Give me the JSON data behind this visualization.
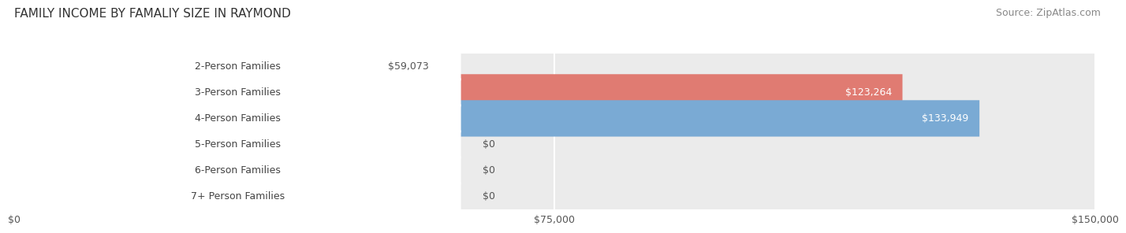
{
  "title": "FAMILY INCOME BY FAMALIY SIZE IN RAYMOND",
  "source": "Source: ZipAtlas.com",
  "categories": [
    "2-Person Families",
    "3-Person Families",
    "4-Person Families",
    "5-Person Families",
    "6-Person Families",
    "7+ Person Families"
  ],
  "values": [
    59073,
    123264,
    133949,
    0,
    0,
    0
  ],
  "bar_colors": [
    "#f8c98a",
    "#e07b72",
    "#7aaad4",
    "#c9aedd",
    "#7ecfc4",
    "#b0b8d8"
  ],
  "label_colors": [
    "#555555",
    "#ffffff",
    "#ffffff",
    "#555555",
    "#555555",
    "#555555"
  ],
  "x_ticks": [
    0,
    75000,
    150000
  ],
  "x_tick_labels": [
    "$0",
    "$75,000",
    "$150,000"
  ],
  "xlim": [
    0,
    150000
  ],
  "background_color": "#ffffff",
  "bar_background_color": "#ebebeb",
  "value_labels": [
    "$59,073",
    "$123,264",
    "$133,949",
    "$0",
    "$0",
    "$0"
  ],
  "title_fontsize": 11,
  "source_fontsize": 9,
  "label_fontsize": 9,
  "tick_fontsize": 9,
  "bar_height": 0.7,
  "bar_gap": 1.0
}
